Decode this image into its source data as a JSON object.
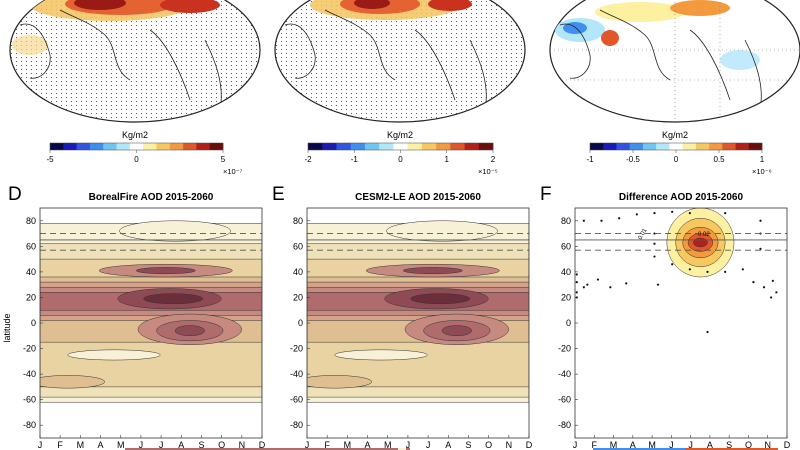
{
  "colorbars": [
    {
      "unit": "Kg/m2",
      "ticks": [
        "-5",
        "0",
        "5"
      ],
      "exponent": "×10⁻⁷"
    },
    {
      "unit": "Kg/m2",
      "ticks": [
        "-2",
        "-1",
        "0",
        "1",
        "2"
      ],
      "exponent": "×10⁻⁵"
    },
    {
      "unit": "Kg/m2",
      "ticks": [
        "-1",
        "-0.5",
        "0",
        "0.5",
        "1"
      ],
      "exponent": "×10⁻⁶"
    }
  ],
  "palettes": {
    "diverging": [
      "#08084a",
      "#1a1ab5",
      "#2f55e0",
      "#3f8ff0",
      "#6ec6f5",
      "#b2e6fb",
      "#ffffff",
      "#fdf0a0",
      "#f7c860",
      "#f39a3c",
      "#e2572a",
      "#b3201c",
      "#6b0d0b"
    ],
    "sequential": [
      "#f7f1d8",
      "#efe2b8",
      "#ead3a2",
      "#dfbe92",
      "#d6a38a",
      "#c78a80",
      "#b06c6c",
      "#8e4b55",
      "#6b2f3c"
    ]
  },
  "panels": [
    {
      "letter": "D",
      "title": "BorealFire AOD 2015-2060",
      "ylabel": "latitude"
    },
    {
      "letter": "E",
      "title": "CESM2-LE AOD 2015-2060"
    },
    {
      "letter": "F",
      "title": "Difference AOD 2015-2060",
      "contour_labels": [
        "0.01",
        "0.02"
      ]
    }
  ],
  "chart_data": {
    "type": "contour",
    "x": [
      "J",
      "F",
      "M",
      "A",
      "M",
      "J",
      "J",
      "A",
      "S",
      "O",
      "N",
      "D"
    ],
    "yticks": [
      "80",
      "60",
      "40",
      "20",
      "0",
      "-20",
      "-40",
      "-60",
      "-80"
    ],
    "ylim": [
      -90,
      90
    ],
    "reference_lines_lat": [
      70,
      65,
      57
    ],
    "difference_significant_points": [
      [
        1,
        80
      ],
      [
        2,
        80
      ],
      [
        3,
        82
      ],
      [
        4,
        85
      ],
      [
        5,
        86
      ],
      [
        6,
        87
      ],
      [
        7,
        86
      ],
      [
        9,
        86
      ],
      [
        11,
        80
      ],
      [
        5,
        70
      ],
      [
        5,
        62
      ],
      [
        5,
        52
      ],
      [
        6,
        46
      ],
      [
        7,
        42
      ],
      [
        8,
        40
      ],
      [
        9,
        40
      ],
      [
        10,
        42
      ],
      [
        11,
        70
      ],
      [
        11,
        58
      ],
      [
        0.6,
        38
      ],
      [
        0.6,
        32
      ],
      [
        1,
        28
      ],
      [
        0.6,
        24
      ],
      [
        0.6,
        20
      ],
      [
        1.2,
        30
      ],
      [
        1.8,
        34
      ],
      [
        2.5,
        28
      ],
      [
        3.4,
        31
      ],
      [
        5.2,
        30
      ],
      [
        10.6,
        32
      ],
      [
        11.2,
        28
      ],
      [
        11.7,
        33
      ],
      [
        11.9,
        24
      ],
      [
        11.6,
        20
      ],
      [
        8,
        -7
      ]
    ]
  }
}
